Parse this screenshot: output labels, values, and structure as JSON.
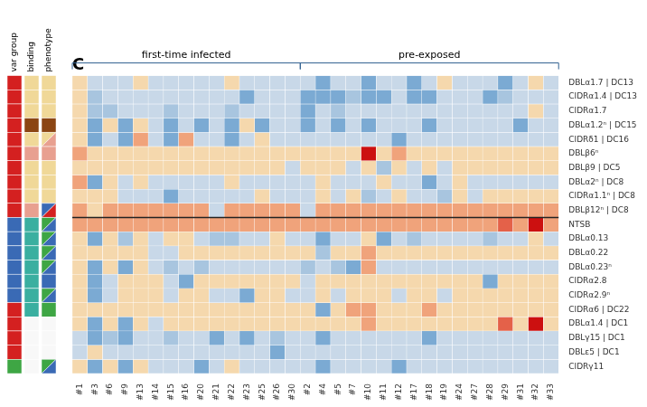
{
  "chart_data": {
    "type": "heatmap",
    "title": "C",
    "x_groups": [
      {
        "name": "first-time infected",
        "color": "#2f5f8f",
        "categories": [
          "#1",
          "#3",
          "#6",
          "#9",
          "#13",
          "#14",
          "#15",
          "#16",
          "#20",
          "#21",
          "#22",
          "#23",
          "#25",
          "#26",
          "#30"
        ]
      },
      {
        "name": "pre-exposed",
        "color": "#2f5f8f",
        "categories": [
          "#2",
          "#4",
          "#5",
          "#7",
          "#10",
          "#11",
          "#12",
          "#17",
          "#18",
          "#19",
          "#24",
          "#27",
          "#28",
          "#29",
          "#31",
          "#32",
          "#33"
        ]
      }
    ],
    "rows": [
      "DBLα1.7 | DC13",
      "CIDRα1.4 | DC13",
      "CIDRα1.7",
      "DBLα1.2ⁿ | DC15",
      "CIDRδ1 | DC16",
      "DBLβ6ⁿ",
      "DBLβ9 | DC5",
      "DBLα2ⁿ | DC8",
      "CIDRα1.1ⁿ | DC8",
      "DBLβ12ⁿ | DC8",
      "NTSB",
      "DBLα0.13",
      "DBLα0.22",
      "DBLα0.23ⁿ",
      "CIDRα2.8",
      "CIDRα2.9ⁿ",
      "CIDRα6 | DC22",
      "DBLα1.4 | DC1",
      "DBLγ15 | DC1",
      "DBLε5 | DC1",
      "CIDRγ11"
    ],
    "separator_above": "NTSB",
    "grid": false,
    "color_range": [
      0.0,
      1.0
    ],
    "colorscale": [
      [
        0.0,
        "#2060a0"
      ],
      [
        0.15,
        "#4f8ec9"
      ],
      [
        0.3,
        "#91b8d8"
      ],
      [
        0.42,
        "#c8d8e8"
      ],
      [
        0.5,
        "#f5e8c0"
      ],
      [
        0.6,
        "#f5c89a"
      ],
      [
        0.72,
        "#e87050"
      ],
      [
        0.85,
        "#d83030"
      ],
      [
        1.0,
        "#cc1010"
      ]
    ],
    "annotation_columns": [
      {
        "name": "var group",
        "colors": [
          "#d42020",
          "#d42020",
          "#d42020",
          "#d42020",
          "#d42020",
          "#d42020",
          "#d42020",
          "#d42020",
          "#d42020",
          "#d42020",
          "#3a6ab5",
          "#3a6ab5",
          "#3a6ab5",
          "#3a6ab5",
          "#3a6ab5",
          "#3a6ab5",
          "#d42020",
          "#d42020",
          "#d42020",
          "#d42020",
          "#3ea644"
        ]
      },
      {
        "name": "binding",
        "colors": [
          "#f0d898",
          "#f0d898",
          "#f0d898",
          "#8b4513",
          "#f0d898",
          "#e8a090",
          "#f0d898",
          "#f0d898",
          "#f0d898",
          "#e8a090",
          "#3aafa0",
          "#3aafa0",
          "#3aafa0",
          "#3aafa0",
          "#3aafa0",
          "#3aafa0",
          "#3aafa0",
          "#f8f8f8",
          "#f8f8f8",
          "#f8f8f8",
          "#f8f8f8"
        ]
      },
      {
        "name": "phenotype",
        "colors": [
          [
            "#f0d898",
            "#f0d898"
          ],
          [
            "#f0d898",
            "#f0d898"
          ],
          [
            "#f0d898",
            "#f0d898"
          ],
          [
            "#8b4513",
            "#8b4513"
          ],
          [
            "#f0d898",
            "#e8a090"
          ],
          [
            "#e8a090",
            "#e8a090"
          ],
          [
            "#f0d898",
            "#f0d898"
          ],
          [
            "#f0d898",
            "#f0d898"
          ],
          [
            "#f0d898",
            "#f0d898"
          ],
          [
            "#3a6ab5",
            "#d42020"
          ],
          [
            "#3ea644",
            "#3a6ab5"
          ],
          [
            "#3ea644",
            "#3a6ab5"
          ],
          [
            "#3ea644",
            "#3a6ab5"
          ],
          [
            "#3ea644",
            "#3a6ab5"
          ],
          [
            "#3a6ab5",
            "#3a6ab5"
          ],
          [
            "#3ea644",
            "#3a6ab5"
          ],
          [
            "#3ea644",
            "#3ea644"
          ],
          [
            "#f8f8f8",
            "#f8f8f8"
          ],
          [
            "#f8f8f8",
            "#f8f8f8"
          ],
          [
            "#f8f8f8",
            "#f8f8f8"
          ],
          [
            "#3ea644",
            "#3a6ab5"
          ]
        ]
      }
    ],
    "values": [
      [
        0.55,
        0.42,
        0.42,
        0.42,
        0.55,
        0.42,
        0.42,
        0.42,
        0.42,
        0.42,
        0.55,
        0.42,
        0.42,
        0.42,
        0.42,
        0.42,
        0.25,
        0.42,
        0.42,
        0.25,
        0.42,
        0.42,
        0.25,
        0.42,
        0.55,
        0.42,
        0.42,
        0.42,
        0.25,
        0.42,
        0.55,
        0.42
      ],
      [
        0.55,
        0.35,
        0.42,
        0.42,
        0.42,
        0.42,
        0.42,
        0.42,
        0.42,
        0.42,
        0.42,
        0.25,
        0.42,
        0.42,
        0.42,
        0.25,
        0.25,
        0.25,
        0.35,
        0.25,
        0.25,
        0.42,
        0.25,
        0.25,
        0.42,
        0.42,
        0.42,
        0.25,
        0.35,
        0.42,
        0.42,
        0.42
      ],
      [
        0.55,
        0.35,
        0.35,
        0.42,
        0.42,
        0.42,
        0.35,
        0.42,
        0.42,
        0.42,
        0.35,
        0.42,
        0.42,
        0.42,
        0.42,
        0.25,
        0.42,
        0.35,
        0.42,
        0.42,
        0.42,
        0.42,
        0.42,
        0.42,
        0.42,
        0.42,
        0.42,
        0.42,
        0.42,
        0.42,
        0.55,
        0.42
      ],
      [
        0.55,
        0.25,
        0.55,
        0.25,
        0.55,
        0.42,
        0.25,
        0.42,
        0.25,
        0.42,
        0.25,
        0.55,
        0.25,
        0.42,
        0.42,
        0.25,
        0.42,
        0.25,
        0.42,
        0.25,
        0.42,
        0.42,
        0.42,
        0.25,
        0.42,
        0.42,
        0.42,
        0.42,
        0.42,
        0.25,
        0.42,
        0.42
      ],
      [
        0.55,
        0.25,
        0.42,
        0.25,
        0.65,
        0.42,
        0.25,
        0.65,
        0.42,
        0.42,
        0.25,
        0.42,
        0.55,
        0.42,
        0.42,
        0.42,
        0.42,
        0.42,
        0.42,
        0.42,
        0.42,
        0.25,
        0.42,
        0.42,
        0.42,
        0.42,
        0.42,
        0.42,
        0.42,
        0.42,
        0.42,
        0.42
      ],
      [
        0.65,
        0.55,
        0.55,
        0.55,
        0.55,
        0.55,
        0.55,
        0.55,
        0.55,
        0.55,
        0.55,
        0.55,
        0.55,
        0.55,
        0.55,
        0.55,
        0.55,
        0.55,
        0.55,
        1.0,
        0.55,
        0.65,
        0.55,
        0.55,
        0.55,
        0.55,
        0.55,
        0.55,
        0.55,
        0.55,
        0.55,
        0.55
      ],
      [
        0.55,
        0.55,
        0.55,
        0.55,
        0.55,
        0.55,
        0.55,
        0.55,
        0.55,
        0.55,
        0.55,
        0.55,
        0.55,
        0.55,
        0.42,
        0.55,
        0.55,
        0.55,
        0.42,
        0.55,
        0.35,
        0.55,
        0.42,
        0.55,
        0.42,
        0.55,
        0.55,
        0.55,
        0.55,
        0.55,
        0.55,
        0.55
      ],
      [
        0.65,
        0.25,
        0.55,
        0.42,
        0.55,
        0.42,
        0.42,
        0.42,
        0.42,
        0.42,
        0.55,
        0.42,
        0.42,
        0.42,
        0.42,
        0.42,
        0.55,
        0.42,
        0.42,
        0.42,
        0.55,
        0.42,
        0.42,
        0.25,
        0.42,
        0.55,
        0.42,
        0.42,
        0.42,
        0.42,
        0.42,
        0.42
      ],
      [
        0.55,
        0.55,
        0.55,
        0.42,
        0.42,
        0.42,
        0.25,
        0.42,
        0.42,
        0.42,
        0.42,
        0.42,
        0.55,
        0.42,
        0.42,
        0.42,
        0.55,
        0.42,
        0.55,
        0.35,
        0.42,
        0.55,
        0.42,
        0.42,
        0.35,
        0.55,
        0.42,
        0.55,
        0.55,
        0.55,
        0.55,
        0.55
      ],
      [
        0.65,
        0.55,
        0.65,
        0.65,
        0.65,
        0.65,
        0.65,
        0.65,
        0.65,
        0.42,
        0.65,
        0.65,
        0.65,
        0.65,
        0.65,
        0.42,
        0.65,
        0.65,
        0.65,
        0.65,
        0.65,
        0.65,
        0.65,
        0.65,
        0.65,
        0.65,
        0.65,
        0.65,
        0.65,
        0.65,
        0.65,
        0.65
      ],
      [
        0.65,
        0.65,
        0.65,
        0.65,
        0.65,
        0.65,
        0.65,
        0.65,
        0.65,
        0.65,
        0.65,
        0.65,
        0.65,
        0.65,
        0.65,
        0.65,
        0.65,
        0.65,
        0.65,
        0.65,
        0.65,
        0.65,
        0.65,
        0.65,
        0.65,
        0.65,
        0.65,
        0.65,
        0.75,
        0.65,
        1.0,
        0.65
      ],
      [
        0.55,
        0.25,
        0.55,
        0.35,
        0.55,
        0.42,
        0.55,
        0.55,
        0.42,
        0.35,
        0.35,
        0.42,
        0.42,
        0.55,
        0.42,
        0.42,
        0.25,
        0.42,
        0.42,
        0.55,
        0.25,
        0.42,
        0.35,
        0.42,
        0.42,
        0.42,
        0.42,
        0.35,
        0.42,
        0.42,
        0.55,
        0.42
      ],
      [
        0.55,
        0.55,
        0.55,
        0.55,
        0.55,
        0.42,
        0.42,
        0.55,
        0.55,
        0.55,
        0.55,
        0.55,
        0.55,
        0.55,
        0.55,
        0.55,
        0.35,
        0.55,
        0.55,
        0.65,
        0.55,
        0.55,
        0.55,
        0.55,
        0.55,
        0.55,
        0.55,
        0.55,
        0.55,
        0.55,
        0.55,
        0.55
      ],
      [
        0.55,
        0.25,
        0.55,
        0.25,
        0.55,
        0.42,
        0.35,
        0.42,
        0.35,
        0.42,
        0.42,
        0.42,
        0.42,
        0.42,
        0.42,
        0.35,
        0.42,
        0.35,
        0.25,
        0.65,
        0.42,
        0.42,
        0.42,
        0.42,
        0.42,
        0.42,
        0.42,
        0.42,
        0.42,
        0.42,
        0.42,
        0.42
      ],
      [
        0.55,
        0.25,
        0.42,
        0.55,
        0.55,
        0.55,
        0.42,
        0.25,
        0.55,
        0.55,
        0.55,
        0.55,
        0.55,
        0.55,
        0.55,
        0.42,
        0.55,
        0.55,
        0.55,
        0.55,
        0.55,
        0.55,
        0.55,
        0.55,
        0.55,
        0.55,
        0.55,
        0.25,
        0.55,
        0.55,
        0.55,
        0.55
      ],
      [
        0.55,
        0.25,
        0.42,
        0.55,
        0.55,
        0.55,
        0.42,
        0.55,
        0.55,
        0.42,
        0.42,
        0.25,
        0.55,
        0.55,
        0.42,
        0.42,
        0.55,
        0.42,
        0.55,
        0.55,
        0.55,
        0.42,
        0.55,
        0.55,
        0.42,
        0.55,
        0.55,
        0.55,
        0.55,
        0.55,
        0.55,
        0.55
      ],
      [
        0.55,
        0.55,
        0.55,
        0.55,
        0.55,
        0.55,
        0.55,
        0.55,
        0.55,
        0.55,
        0.55,
        0.55,
        0.55,
        0.55,
        0.55,
        0.55,
        0.25,
        0.55,
        0.65,
        0.65,
        0.55,
        0.55,
        0.55,
        0.65,
        0.55,
        0.55,
        0.55,
        0.55,
        0.55,
        0.55,
        0.55,
        0.55
      ],
      [
        0.55,
        0.25,
        0.55,
        0.25,
        0.55,
        0.42,
        0.55,
        0.55,
        0.55,
        0.55,
        0.55,
        0.55,
        0.55,
        0.55,
        0.55,
        0.55,
        0.55,
        0.55,
        0.55,
        0.65,
        0.55,
        0.55,
        0.55,
        0.55,
        0.55,
        0.55,
        0.55,
        0.55,
        0.75,
        0.55,
        1.0,
        0.55
      ],
      [
        0.42,
        0.25,
        0.35,
        0.25,
        0.42,
        0.42,
        0.35,
        0.42,
        0.42,
        0.25,
        0.42,
        0.25,
        0.42,
        0.35,
        0.42,
        0.42,
        0.25,
        0.42,
        0.42,
        0.42,
        0.42,
        0.42,
        0.42,
        0.25,
        0.42,
        0.42,
        0.42,
        0.42,
        0.42,
        0.42,
        0.42,
        0.42
      ],
      [
        0.42,
        0.55,
        0.42,
        0.42,
        0.42,
        0.42,
        0.42,
        0.42,
        0.42,
        0.42,
        0.42,
        0.42,
        0.42,
        0.25,
        0.42,
        0.42,
        0.42,
        0.42,
        0.42,
        0.42,
        0.42,
        0.42,
        0.42,
        0.42,
        0.42,
        0.42,
        0.42,
        0.42,
        0.42,
        0.42,
        0.42,
        0.42
      ],
      [
        0.55,
        0.25,
        0.55,
        0.25,
        0.55,
        0.42,
        0.42,
        0.42,
        0.25,
        0.42,
        0.55,
        0.42,
        0.42,
        0.42,
        0.42,
        0.42,
        0.25,
        0.42,
        0.42,
        0.42,
        0.42,
        0.25,
        0.42,
        0.42,
        0.42,
        0.42,
        0.42,
        0.42,
        0.42,
        0.42,
        0.42,
        0.42
      ]
    ]
  }
}
